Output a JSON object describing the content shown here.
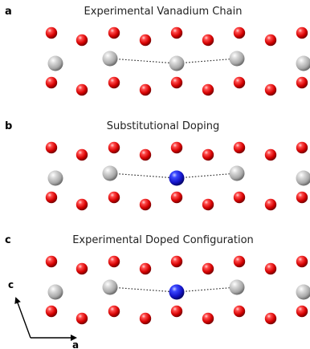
{
  "panels": [
    {
      "id": "a",
      "letter": "a",
      "title": "Experimental Vanadium Chain",
      "chain": [
        "V",
        "V",
        "V"
      ]
    },
    {
      "id": "b",
      "letter": "b",
      "title": "Substitutional Doping",
      "chain": [
        "V",
        "dopant",
        "V"
      ]
    },
    {
      "id": "c",
      "letter": "c",
      "title": "Experimental Doped Configuration",
      "chain": [
        "V",
        "dopant",
        "V"
      ]
    }
  ],
  "axes": {
    "vertical_label": "c",
    "horizontal_label": "a"
  },
  "colors": {
    "oxygen": "#e01010",
    "vanadium": "#bdbdbd",
    "dopant": "#1f2de0",
    "bond": "#222222"
  }
}
